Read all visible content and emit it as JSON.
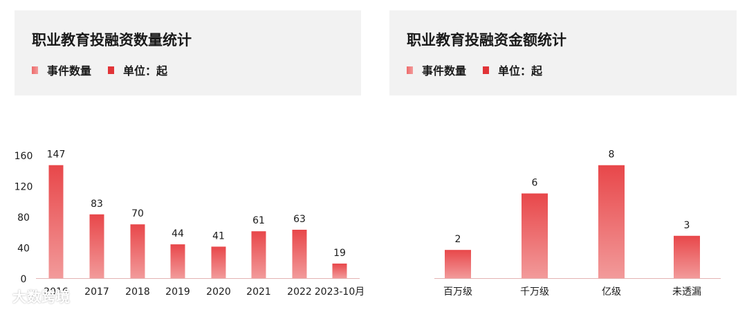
{
  "panels": [
    {
      "title": "职业教育投融资数量统计",
      "legend": [
        {
          "label": "事件数量"
        },
        {
          "label": "单位：起"
        }
      ]
    },
    {
      "title": "职业教育投融资金额统计",
      "legend": [
        {
          "label": "事件数量"
        },
        {
          "label": "单位：起"
        }
      ]
    }
  ],
  "colors": {
    "bar_top": "#e8474a",
    "bar_bottom": "#f29a9a",
    "axis": "#e4b3b3",
    "text": "#1a1a1a"
  },
  "watermark": "大数跨境",
  "chart_data": [
    {
      "type": "bar",
      "categories": [
        "2016",
        "2017",
        "2018",
        "2019",
        "2020",
        "2021",
        "2022",
        "2023-10月"
      ],
      "values": [
        147,
        83,
        70,
        44,
        41,
        61,
        63,
        19
      ],
      "yticks": [
        0,
        40,
        80,
        120,
        160
      ],
      "ylim": [
        0,
        180
      ]
    },
    {
      "type": "bar",
      "categories": [
        "百万级",
        "千万级",
        "亿级",
        "未透漏"
      ],
      "values": [
        2,
        6,
        8,
        3
      ],
      "ylim": [
        0,
        9.8
      ]
    }
  ]
}
